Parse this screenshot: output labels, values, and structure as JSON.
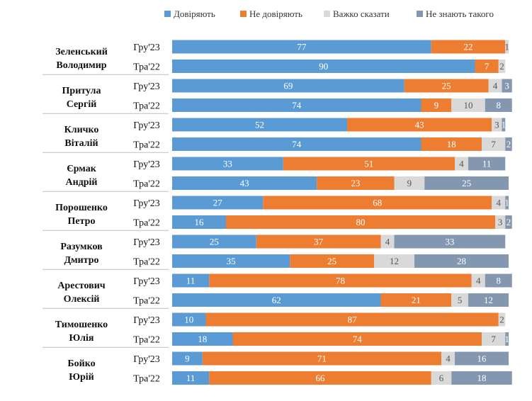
{
  "chart_data": {
    "type": "bar",
    "orientation": "horizontal",
    "stacked": true,
    "xlim": [
      0,
      100
    ],
    "legend_position": "top",
    "series": [
      {
        "name": "Довіряють",
        "color": "#5b9bd5"
      },
      {
        "name": "Не довіряють",
        "color": "#ed7d31"
      },
      {
        "name": "Важко сказати",
        "color": "#d9d9d9"
      },
      {
        "name": "Не знають такого",
        "color": "#8497b0"
      }
    ],
    "groups": [
      {
        "name_lines": [
          "Зеленський",
          "Володимир"
        ],
        "rows": [
          {
            "period": "Гру'23",
            "values": [
              77,
              22,
              1,
              0
            ]
          },
          {
            "period": "Тра'22",
            "values": [
              90,
              7,
              2,
              0
            ]
          }
        ]
      },
      {
        "name_lines": [
          "Притула",
          "Сергій"
        ],
        "rows": [
          {
            "period": "Гру'23",
            "values": [
              69,
              25,
              4,
              3
            ]
          },
          {
            "period": "Тра'22",
            "values": [
              74,
              9,
              10,
              8
            ]
          }
        ]
      },
      {
        "name_lines": [
          "Кличко",
          "Віталій"
        ],
        "rows": [
          {
            "period": "Гру'23",
            "values": [
              52,
              43,
              3,
              1
            ]
          },
          {
            "period": "Тра'22",
            "values": [
              74,
              18,
              7,
              2
            ]
          }
        ]
      },
      {
        "name_lines": [
          "Єрмак",
          "Андрій"
        ],
        "rows": [
          {
            "period": "Гру'23",
            "values": [
              33,
              51,
              4,
              11
            ]
          },
          {
            "period": "Тра'22",
            "values": [
              43,
              23,
              9,
              25
            ]
          }
        ]
      },
      {
        "name_lines": [
          "Порошенко",
          "Петро"
        ],
        "rows": [
          {
            "period": "Гру'23",
            "values": [
              27,
              68,
              4,
              1
            ]
          },
          {
            "period": "Тра'22",
            "values": [
              16,
              80,
              3,
              2
            ]
          }
        ]
      },
      {
        "name_lines": [
          "Разумков",
          "Дмитро"
        ],
        "rows": [
          {
            "period": "Гру'23",
            "values": [
              25,
              37,
              4,
              33
            ]
          },
          {
            "period": "Тра'22",
            "values": [
              35,
              25,
              12,
              28
            ]
          }
        ]
      },
      {
        "name_lines": [
          "Арестович",
          "Олексій"
        ],
        "rows": [
          {
            "period": "Гру'23",
            "values": [
              11,
              78,
              4,
              8
            ]
          },
          {
            "period": "Тра'22",
            "values": [
              62,
              21,
              5,
              12
            ]
          }
        ]
      },
      {
        "name_lines": [
          "Тимошенко",
          "Юлія"
        ],
        "rows": [
          {
            "period": "Гру'23",
            "values": [
              10,
              87,
              2,
              0
            ]
          },
          {
            "period": "Тра'22",
            "values": [
              18,
              74,
              7,
              1
            ]
          }
        ]
      },
      {
        "name_lines": [
          "Бойко",
          "Юрій"
        ],
        "rows": [
          {
            "period": "Гру'23",
            "values": [
              9,
              71,
              4,
              16
            ]
          },
          {
            "period": "Тра'22",
            "values": [
              11,
              66,
              6,
              18
            ]
          }
        ]
      }
    ]
  }
}
